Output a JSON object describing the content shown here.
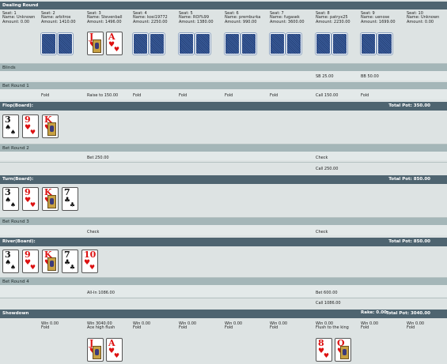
{
  "sections": {
    "dealing": "Dealing Round",
    "blinds": "Blinds",
    "bet1": "Bet Round 1",
    "flop": "Flop(Board):",
    "flop_pot": "Total Pot: 350.00",
    "bet2": "Bet Round 2",
    "turn": "Turn(Board):",
    "turn_pot": "Total Pot: 850.00",
    "bet3": "Bet Round 3",
    "river": "River(Board):",
    "river_pot": "Total Pot: 850.00",
    "bet4": "Bet Round 4",
    "showdown": "Showdown",
    "rake": "Rake: 0.00",
    "showdown_pot": "Total Pot: 3040.00"
  },
  "seats": [
    {
      "seat": "Seat: 1",
      "name": "Name: Unknown",
      "amount": "Amount: 0.00"
    },
    {
      "seat": "Seat: 2",
      "name": "Name: arbitrox",
      "amount": "Amount: 1410.00"
    },
    {
      "seat": "Seat: 3",
      "name": "Name: Stevenball",
      "amount": "Amount: 1496.00"
    },
    {
      "seat": "Seat: 4",
      "name": "Name: kosi19772",
      "amount": "Amount: 2250.00"
    },
    {
      "seat": "Seat: 5",
      "name": "Name: ROI%99",
      "amount": "Amount: 1380.00"
    },
    {
      "seat": "Seat: 6",
      "name": "Name: premburka",
      "amount": "Amount: 990.00"
    },
    {
      "seat": "Seat: 7",
      "name": "Name: fugasek",
      "amount": "Amount: 3600.00"
    },
    {
      "seat": "Seat: 8",
      "name": "Name: patryx25",
      "amount": "Amount: 2230.00"
    },
    {
      "seat": "Seat: 9",
      "name": "Name: uenose",
      "amount": "Amount: 1699.00"
    },
    {
      "seat": "Seat: 10",
      "name": "Name: Unknown",
      "amount": "Amount: 0.00"
    }
  ],
  "hero_hand": [
    {
      "rank": "J",
      "suit": "♥",
      "face": true
    },
    {
      "rank": "A",
      "suit": "♥",
      "face": false
    }
  ],
  "blinds": {
    "sb": "SB 25.00",
    "bb": "BB 50.00"
  },
  "bet1": {
    "s2": "Fold",
    "s3": "Raise to 150.00",
    "s4": "Fold",
    "s5": "Fold",
    "s6": "Fold",
    "s7": "Fold",
    "s8": "Call 150.00",
    "s9": "Fold"
  },
  "flop_cards": [
    {
      "rank": "3",
      "suit": "♠",
      "face": false
    },
    {
      "rank": "9",
      "suit": "♥",
      "face": false
    },
    {
      "rank": "K",
      "suit": "♥",
      "face": true
    }
  ],
  "bet2": {
    "r1_s3": "Bet 250.00",
    "r1_s8": "Check",
    "r2_s8": "Call 250.00"
  },
  "turn_cards": [
    {
      "rank": "3",
      "suit": "♠",
      "face": false
    },
    {
      "rank": "9",
      "suit": "♥",
      "face": false
    },
    {
      "rank": "K",
      "suit": "♥",
      "face": true
    },
    {
      "rank": "7",
      "suit": "♣",
      "face": false
    }
  ],
  "bet3": {
    "s3": "Check",
    "s8": "Check"
  },
  "river_cards": [
    {
      "rank": "3",
      "suit": "♠",
      "face": false
    },
    {
      "rank": "9",
      "suit": "♥",
      "face": false
    },
    {
      "rank": "K",
      "suit": "♥",
      "face": true
    },
    {
      "rank": "7",
      "suit": "♣",
      "face": false
    },
    {
      "rank": "10",
      "suit": "♥",
      "face": false
    }
  ],
  "bet4": {
    "r1_s3": "All-In 1086.00",
    "r1_s8": "Bet 600.00",
    "r2_s8": "Call 1086.00"
  },
  "showdown": [
    {
      "win": "",
      "res": ""
    },
    {
      "win": "Win 0.00",
      "res": "Fold"
    },
    {
      "win": "Win 3040.00",
      "res": "Ace high flush"
    },
    {
      "win": "Win 0.00",
      "res": "Fold"
    },
    {
      "win": "Win 0.00",
      "res": "Fold"
    },
    {
      "win": "Win 0.00",
      "res": "Fold"
    },
    {
      "win": "Win 0.00",
      "res": "Fold"
    },
    {
      "win": "Win 0.00",
      "res": "Flush to the king"
    },
    {
      "win": "Win 0.00",
      "res": "Fold"
    },
    {
      "win": "Win 0.00",
      "res": "Fold"
    }
  ],
  "showdown_hands": {
    "s3": [
      {
        "rank": "J",
        "suit": "♥",
        "face": true
      },
      {
        "rank": "A",
        "suit": "♥",
        "face": false
      }
    ],
    "s8": [
      {
        "rank": "8",
        "suit": "♥",
        "face": false
      },
      {
        "rank": "Q",
        "suit": "♥",
        "face": true
      }
    ]
  },
  "colors": {
    "bar": "#4e6470",
    "subbar": "#a4b6b8",
    "row": "#e3e9e9",
    "card_back": "#2f4e86",
    "red_suit": "#dd1111"
  }
}
